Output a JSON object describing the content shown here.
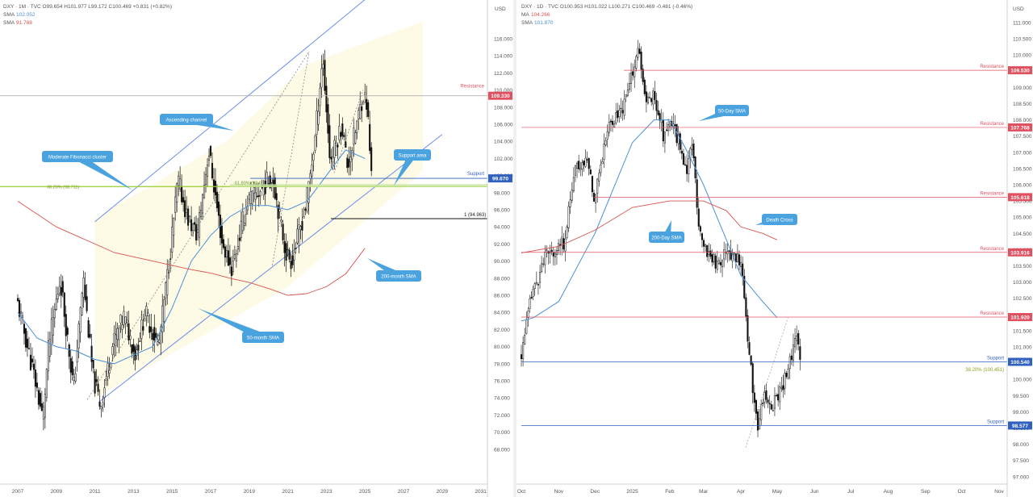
{
  "colors": {
    "candle": "#111111",
    "sma_blue": "#4a90d9",
    "sma_red": "#d9534f",
    "channel": "#6b8ee8",
    "channel_fill": "#fdf9e3",
    "resistance": "#e05060",
    "support": "#3060c0",
    "fib": "#9acd32",
    "callout": "#4aa3df",
    "axis_text": "#555555"
  },
  "left": {
    "header": {
      "line1": "DXY · 1M · TVC  O99.654  H101.977  L99.172  C100.469  +0.831 (+0.82%)",
      "line2_label": "SMA",
      "line2_value": "102.052",
      "line3_label": "SMA",
      "line3_value": "91.788"
    },
    "currency": "USD",
    "y_ticks": [
      "116.000",
      "114.000",
      "112.000",
      "110.000",
      "108.000",
      "106.000",
      "104.000",
      "102.000",
      "100.000",
      "98.000",
      "96.000",
      "94.000",
      "92.000",
      "90.000",
      "88.000",
      "86.000",
      "84.000",
      "82.000",
      "80.000",
      "78.000",
      "76.000",
      "74.000",
      "72.000",
      "70.000",
      "68.000"
    ],
    "x_ticks": [
      "2007",
      "2009",
      "2011",
      "2013",
      "2015",
      "2017",
      "2019",
      "2021",
      "2023",
      "2025",
      "2027",
      "2029",
      "2031"
    ],
    "levels": [
      {
        "name": "resistance",
        "label": "Resistance",
        "tag": "109.330",
        "value": 109.33
      },
      {
        "name": "support",
        "label": "Support",
        "tag": "99.670",
        "value": 99.67
      },
      {
        "name": "fib-382",
        "label": "38.20% (98.711)",
        "value": 98.711
      },
      {
        "name": "fib-618",
        "label": "61.80% (98.9",
        "value": 98.9
      },
      {
        "name": "target",
        "label": "1 (94.963)",
        "value": 94.963
      }
    ],
    "callouts": [
      "Ascending channel",
      "Moderate Fibonacci cluster",
      "Support area",
      "200-month SMA",
      "50-month SMA"
    ]
  },
  "right": {
    "header": {
      "line1": "DXY · 1D · TVC  O100.953  H101.022  L100.271  C100.469  -0.481 (-0.46%)",
      "line2_label": "MA",
      "line2_value": "104.266",
      "line3_label": "SMA",
      "line3_value": "101.870"
    },
    "currency": "USD",
    "y_ticks": [
      "111.000",
      "110.500",
      "110.000",
      "109.500",
      "109.000",
      "108.500",
      "108.000",
      "107.500",
      "107.000",
      "106.500",
      "106.000",
      "105.500",
      "105.000",
      "104.500",
      "104.000",
      "103.500",
      "103.000",
      "102.500",
      "102.000",
      "101.500",
      "101.000",
      "100.500",
      "100.000",
      "99.500",
      "99.000",
      "98.500",
      "98.000",
      "97.500",
      "97.000"
    ],
    "x_ticks": [
      "Oct",
      "Nov",
      "Dec",
      "2025",
      "Feb",
      "Mar",
      "Apr",
      "May",
      "Jun",
      "Jul",
      "Aug",
      "Sep",
      "Oct",
      "Nov"
    ],
    "levels": [
      {
        "name": "resistance-1",
        "label": "Resistance",
        "tag": "109.530",
        "value": 109.53
      },
      {
        "name": "resistance-2",
        "label": "Resistance",
        "tag": "107.768",
        "value": 107.768
      },
      {
        "name": "resistance-3",
        "label": "Resistance",
        "tag": "105.618",
        "value": 105.618
      },
      {
        "name": "resistance-4",
        "label": "Resistance",
        "tag": "103.916",
        "value": 103.916
      },
      {
        "name": "resistance-5",
        "label": "Resistance",
        "tag": "101.920",
        "value": 101.92
      },
      {
        "name": "support-1",
        "label": "Support",
        "tag": "100.540",
        "value": 100.54
      },
      {
        "name": "fib-382",
        "label": "38.20% (100.451)",
        "value": 100.451
      },
      {
        "name": "support-2",
        "label": "Support",
        "tag": "98.577",
        "value": 98.577
      }
    ],
    "callouts": [
      "50-Day SMA",
      "200-Day SMA",
      "Death Cross"
    ]
  },
  "chart_data": [
    {
      "type": "line",
      "chart": "DXY monthly candlestick",
      "ylim": [
        67,
        118
      ],
      "x": [
        2007,
        2008,
        2009,
        2010,
        2011,
        2012,
        2013,
        2014,
        2015,
        2016,
        2017,
        2018,
        2019,
        2020,
        2021,
        2022,
        2023,
        2024,
        2025
      ],
      "series": [
        {
          "name": "close",
          "values": [
            77.5,
            82,
            78,
            79,
            73,
            80,
            80.5,
            90,
            98.5,
            101,
            92,
            96.5,
            97,
            89.9,
            95.9,
            103.5,
            101.3,
            108.5,
            100.5
          ]
        },
        {
          "name": "SMA",
          "values": [
            84,
            81,
            80,
            79.5,
            78.5,
            78,
            79,
            80,
            84.5,
            90,
            93,
            95.2,
            96.5,
            96.5,
            96,
            97,
            100,
            103,
            102
          ]
        },
        {
          "name": "SMA",
          "values": [
            97,
            95.5,
            94,
            93,
            92,
            91,
            90.5,
            90,
            89.5,
            89,
            88.6,
            88,
            87.5,
            86.8,
            86,
            86.2,
            87,
            88.5,
            91.5
          ]
        }
      ],
      "channel": {
        "start": [
          2011,
          74
        ],
        "end": [
          2025,
          110
        ],
        "parallel_offset": 25
      },
      "projection_x_range": [
        2022,
        2031
      ]
    },
    {
      "type": "line",
      "chart": "DXY daily candlestick",
      "ylim": [
        96.8,
        111.3
      ],
      "x": [
        "Oct",
        "Nov",
        "Dec",
        "2025",
        "Feb",
        "Mar",
        "Apr",
        "May"
      ],
      "series": [
        {
          "name": "close",
          "values": [
            100.8,
            104,
            106,
            109,
            107.5,
            104,
            99.2,
            100.5
          ]
        },
        {
          "name": "SMA",
          "values": [
            101.8,
            102.4,
            104.5,
            107.3,
            108,
            106,
            103,
            101.9
          ]
        },
        {
          "name": "MA",
          "values": [
            103.9,
            104.1,
            104.6,
            105.3,
            105.5,
            105.5,
            104.7,
            104.3
          ]
        }
      ]
    }
  ]
}
